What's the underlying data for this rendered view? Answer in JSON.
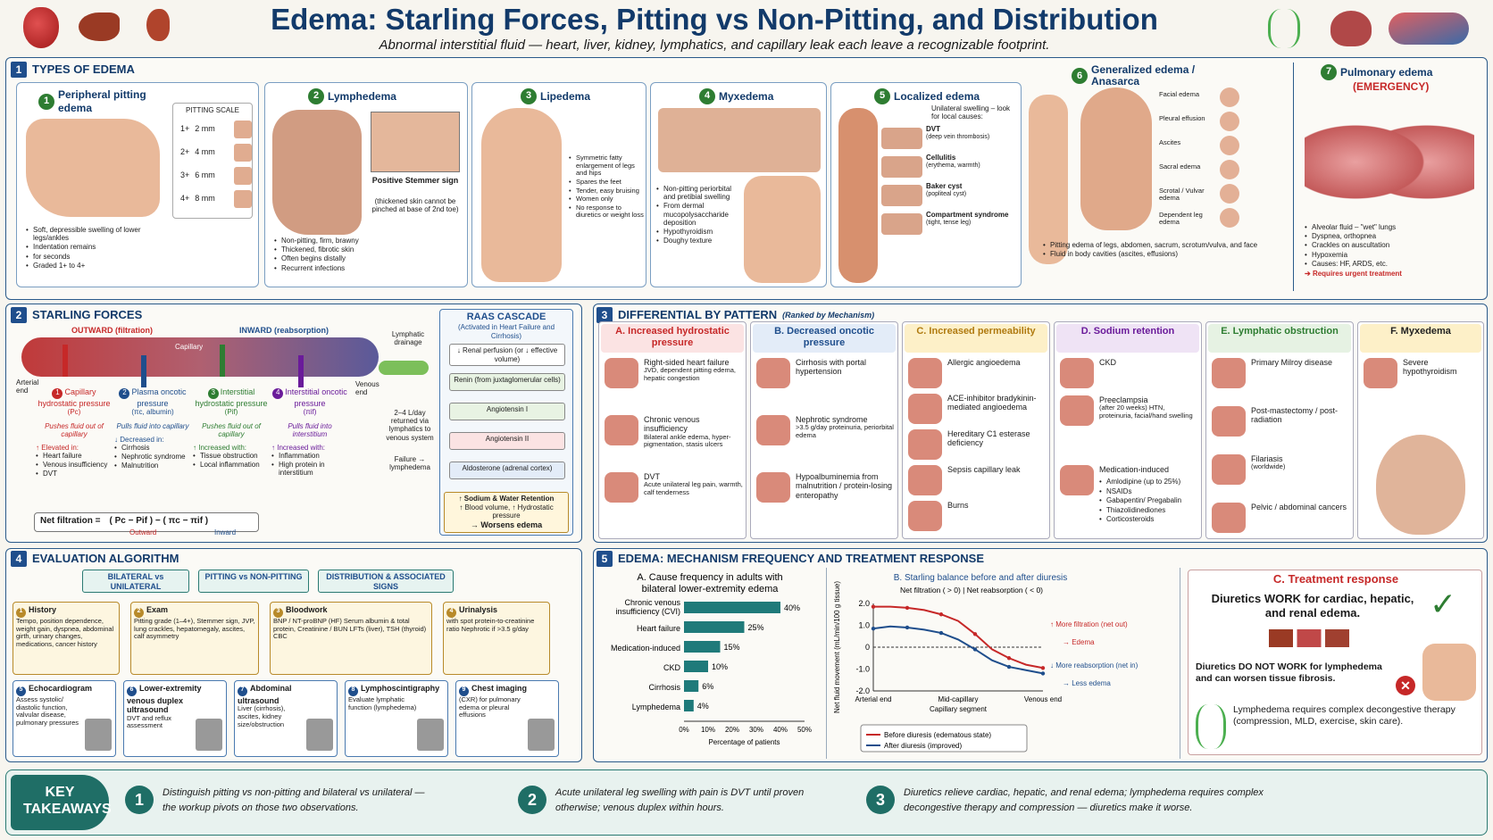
{
  "header": {
    "title": "Edema: Starling Forces, Pitting vs Non-Pitting, and Distribution",
    "subtitle": "Abnormal interstitial fluid — heart, liver, kidney, lymphatics, and capillary leak each leave a recognizable footprint."
  },
  "s1": {
    "num": "1",
    "title": "TYPES OF EDEMA",
    "c1": {
      "num": "1",
      "title": "Peripheral pitting edema",
      "scale_title": "PITTING SCALE",
      "scale": [
        {
          "g": "1+",
          "d": "2 mm"
        },
        {
          "g": "2+",
          "d": "4 mm"
        },
        {
          "g": "3+",
          "d": "6 mm"
        },
        {
          "g": "4+",
          "d": "8 mm"
        }
      ],
      "bullets": [
        "Soft, depressible swelling of lower legs/ankles",
        "Indentation remains",
        "for seconds",
        "Graded 1+ to 4+"
      ]
    },
    "c2": {
      "num": "2",
      "title": "Lymphedema",
      "stemmer": "Positive Stemmer sign",
      "stemmer_note": "(thickened skin cannot be pinched at base of 2nd toe)",
      "bullets": [
        "Non-pitting, firm, brawny",
        "Thickened, fibrotic skin",
        "Often begins distally",
        "Recurrent infections"
      ]
    },
    "c3": {
      "num": "3",
      "title": "Lipedema",
      "bullets": [
        "Symmetric fatty enlargement of legs and hips",
        "Spares the feet",
        "Tender, easy bruising",
        "Women only",
        "No response to diuretics or weight loss"
      ]
    },
    "c4": {
      "num": "4",
      "title": "Myxedema",
      "bullets": [
        "Non-pitting periorbital and pretibial swelling",
        "From dermal mucopolysaccharide deposition",
        "Hypothyroidism",
        "Doughy texture"
      ]
    },
    "c5": {
      "num": "5",
      "title": "Localized edema",
      "intro": "Unilateral swelling – look for local causes:",
      "items": [
        {
          "t": "DVT",
          "s": "(deep vein thrombosis)"
        },
        {
          "t": "Cellulitis",
          "s": "(erythema, warmth)"
        },
        {
          "t": "Baker cyst",
          "s": "(popliteal cyst)"
        },
        {
          "t": "Compartment syndrome",
          "s": "(tight, tense leg)"
        }
      ]
    },
    "c6": {
      "num": "6",
      "title": "Generalized edema / Anasarca",
      "labels": [
        "Facial edema",
        "Pleural effusion",
        "Ascites",
        "Sacral edema",
        "Scrotal / Vulvar edema",
        "Dependent leg edema"
      ],
      "bullets": [
        "Pitting edema of legs, abdomen, sacrum, scrotum/vulva, and face",
        "Fluid in body cavities (ascites, effusions)"
      ]
    },
    "c7": {
      "num": "7",
      "title": "Pulmonary edema",
      "sub": "(EMERGENCY)",
      "bullets": [
        "Alveolar fluid – \"wet\" lungs",
        "Dyspnea, orthopnea",
        "Crackles on auscultation",
        "Hypoxemia",
        "Causes: HF, ARDS, etc."
      ],
      "urgent": "Requires urgent treatment"
    }
  },
  "s2": {
    "num": "2",
    "title": "STARLING FORCES",
    "outward": "OUTWARD (filtration)",
    "inward": "INWARD (reabsorption)",
    "capillary": "Capillary",
    "arterial": "Arterial end",
    "venous": "Venous end",
    "lymph": "Lymphatic drainage",
    "lymph_note": "2–4 L/day returned via lymphatics to venous system",
    "failure": "Failure → lymphedema",
    "forces": [
      {
        "n": "1",
        "t": "Capillary hydrostatic pressure",
        "sym": "(Pc)",
        "d": "Pushes fluid out of capillary",
        "h": "↑ Elevated in:",
        "l": [
          "Heart failure",
          "Venous insufficiency",
          "DVT"
        ]
      },
      {
        "n": "2",
        "t": "Plasma oncotic pressure",
        "sym": "(πc, albumin)",
        "d": "Pulls fluid into capillary",
        "h": "↓ Decreased in:",
        "l": [
          "Cirrhosis",
          "Nephrotic syndrome",
          "Malnutrition"
        ]
      },
      {
        "n": "3",
        "t": "Interstitial hydrostatic pressure",
        "sym": "(Pif)",
        "d": "Pushes fluid out of capillary",
        "h": "↑ Increased with:",
        "l": [
          "Tissue obstruction",
          "Local inflammation"
        ]
      },
      {
        "n": "4",
        "t": "Interstitial oncotic pressure",
        "sym": "(πif)",
        "d": "Pulls fluid into interstitium",
        "h": "↑ Increased with:",
        "l": [
          "Inflammation",
          "High protein in interstitium"
        ]
      }
    ],
    "net_label": "Net filtration =",
    "net_formula": "( Pc − Pif )   −   ( πc − πif )",
    "net_out": "Outward",
    "net_in": "Inward",
    "raas": {
      "title": "RAAS CASCADE",
      "sub": "(Activated in Heart Failure and Cirrhosis)",
      "steps": [
        "↓ Renal perfusion (or ↓ effective volume)",
        "Renin (from juxtaglomerular cells)",
        "Angiotensin I",
        "Angiotensin II",
        "Aldosterone (adrenal cortex)"
      ],
      "result1": "↑ Sodium & Water Retention",
      "result2": "↑ Blood volume, ↑ Hydrostatic pressure",
      "result3": "→ Worsens edema"
    }
  },
  "s3": {
    "num": "3",
    "title": "DIFFERENTIAL BY PATTERN",
    "sub": "(Ranked by Mechanism)",
    "cols": [
      {
        "h": "A. Increased hydrostatic pressure",
        "items": [
          {
            "t": "Right-sided heart failure",
            "s": "JVD, dependent pitting edema, hepatic congestion"
          },
          {
            "t": "Chronic venous insufficiency",
            "s": "Bilateral ankle edema, hyper-pigmentation, stasis ulcers"
          },
          {
            "t": "DVT",
            "s": "Acute unilateral leg pain, warmth, calf tenderness"
          }
        ]
      },
      {
        "h": "B. Decreased oncotic pressure",
        "items": [
          {
            "t": "Cirrhosis with portal hypertension",
            "s": ""
          },
          {
            "t": "Nephrotic syndrome",
            "s": ">3.5 g/day proteinuria, periorbital edema"
          },
          {
            "t": "Hypoalbuminemia from malnutrition / protein-losing enteropathy",
            "s": ""
          }
        ]
      },
      {
        "h": "C. Increased permeability",
        "items": [
          {
            "t": "Allergic angioedema",
            "s": ""
          },
          {
            "t": "ACE-inhibitor bradykinin-mediated angioedema",
            "s": ""
          },
          {
            "t": "Hereditary C1 esterase deficiency",
            "s": ""
          },
          {
            "t": "Sepsis capillary leak",
            "s": ""
          },
          {
            "t": "Burns",
            "s": ""
          }
        ]
      },
      {
        "h": "D. Sodium retention",
        "items": [
          {
            "t": "CKD",
            "s": ""
          },
          {
            "t": "Preeclampsia",
            "s": "(after 20 weeks) HTN, proteinuria, facial/hand swelling"
          },
          {
            "t": "Medication-induced",
            "s": ""
          }
        ],
        "meds": [
          "Amlodipine (up to 25%)",
          "NSAIDs",
          "Gabapentin/ Pregabalin",
          "Thiazolidinediones",
          "Corticosteroids"
        ]
      },
      {
        "h": "E. Lymphatic obstruction",
        "items": [
          {
            "t": "Primary Milroy disease",
            "s": ""
          },
          {
            "t": "Post-mastectomy / post-radiation",
            "s": ""
          },
          {
            "t": "Filariasis",
            "s": "(worldwide)"
          },
          {
            "t": "Pelvic / abdominal cancers",
            "s": ""
          }
        ]
      },
      {
        "h": "F. Myxedema",
        "items": [
          {
            "t": "Severe hypothyroidism",
            "s": ""
          }
        ]
      }
    ]
  },
  "s4": {
    "num": "4",
    "title": "EVALUATION ALGORITHM",
    "tops": [
      "BILATERAL vs UNILATERAL",
      "PITTING vs NON-PITTING",
      "DISTRIBUTION & ASSOCIATED SIGNS"
    ],
    "row1": [
      {
        "n": "1",
        "t": "History",
        "d": "Tempo, position dependence, weight gain, dyspnea, abdominal girth, urinary changes, medications, cancer history"
      },
      {
        "n": "2",
        "t": "Exam",
        "d": "Pitting grade (1–4+), Stemmer sign, JVP, lung crackles, hepatomegaly, ascites, calf asymmetry"
      },
      {
        "n": "3",
        "t": "Bloodwork",
        "d": "BNP / NT-proBNP (HF) Serum albumin & total protein, Creatinine / BUN LFTs (liver), TSH (thyroid) CBC"
      },
      {
        "n": "4",
        "t": "Urinalysis",
        "d": "with spot protein-to-creatinine ratio Nephrotic if >3.5 g/day"
      }
    ],
    "row2": [
      {
        "n": "5",
        "t": "Echocardiogram",
        "d": "Assess systolic/ diastolic function, valvular disease, pulmonary pressures"
      },
      {
        "n": "6",
        "t": "Lower-extremity venous duplex ultrasound",
        "d": "DVT and reflux assessment"
      },
      {
        "n": "7",
        "t": "Abdominal ultrasound",
        "d": "Liver (cirrhosis), ascites, kidney size/obstruction"
      },
      {
        "n": "8",
        "t": "Lymphoscintigraphy",
        "d": "Evaluate lymphatic function (lymphedema)"
      },
      {
        "n": "9",
        "t": "Chest imaging",
        "d": "(CXR) for pulmonary edema or pleural effusions"
      }
    ]
  },
  "s5": {
    "num": "5",
    "title": "EDEMA:  MECHANISM FREQUENCY AND TREATMENT RESPONSE",
    "treat": {
      "title": "C. Treatment response",
      "work": "Diuretics WORK for cardiac, hepatic, and renal edema.",
      "notwork": "Diuretics DO NOT WORK for lymphedema and can worsen tissue fibrosis.",
      "lymph": "Lymphedema requires complex decongestive therapy (compression, MLD, exercise, skin care)."
    }
  },
  "chart_data": [
    {
      "type": "bar",
      "orientation": "horizontal",
      "title": "A. Cause frequency in adults with bilateral lower-extremity edema",
      "categories": [
        "Chronic venous insufficiency (CVI)",
        "Heart failure",
        "Medication-induced",
        "CKD",
        "Cirrhosis",
        "Lymphedema"
      ],
      "values": [
        40,
        25,
        15,
        10,
        6,
        4
      ],
      "value_labels": [
        "40%",
        "25%",
        "15%",
        "10%",
        "6%",
        "4%"
      ],
      "xlabel": "Percentage of patients",
      "xlim": [
        0,
        50
      ],
      "xticks": [
        "0%",
        "10%",
        "20%",
        "30%",
        "40%",
        "50%"
      ],
      "color": "#1f7a7a"
    },
    {
      "type": "line",
      "title": "B. Starling balance before and after diuresis",
      "subtitle": "Net filtration ( > 0)  |  Net reabsorption ( < 0)",
      "xlabel": "Capillary segment",
      "ylabel": "Net fluid movement (mL/min/100 g tissue)",
      "x": [
        0,
        1,
        2,
        3,
        4,
        5,
        6,
        7,
        8,
        9,
        10
      ],
      "xticks": [
        "Arterial end",
        "Mid-capillary",
        "Venous end"
      ],
      "ylim": [
        -2,
        2
      ],
      "yticks": [
        "2.0",
        "1.0",
        "0",
        "-1.0",
        "-2.0"
      ],
      "series": [
        {
          "name": "Before diuresis (edematous state)",
          "color": "#c62828",
          "values": [
            1.85,
            1.85,
            1.8,
            1.7,
            1.5,
            1.2,
            0.6,
            -0.1,
            -0.5,
            -0.8,
            -0.95
          ]
        },
        {
          "name": "After diuresis (improved)",
          "color": "#1f4e8c",
          "values": [
            0.85,
            0.95,
            0.9,
            0.8,
            0.65,
            0.35,
            -0.1,
            -0.6,
            -0.9,
            -1.05,
            -1.2
          ]
        }
      ],
      "annot_up": "More filtration (net out)",
      "annot_up2": "→ Edema",
      "annot_down": "More reabsorption (net in)",
      "annot_down2": "→ Less edema"
    }
  ],
  "takeaways": {
    "label": "KEY TAKEAWAYS",
    "items": [
      {
        "n": "1",
        "t": "Distinguish pitting vs non-pitting and bilateral vs unilateral — the workup pivots on those two observations."
      },
      {
        "n": "2",
        "t": "Acute unilateral leg swelling with pain is DVT until proven otherwise; venous duplex within hours."
      },
      {
        "n": "3",
        "t": "Diuretics relieve cardiac, hepatic, and renal edema;  lymphedema requires complex decongestive therapy and compression — diuretics make it worse."
      }
    ]
  }
}
